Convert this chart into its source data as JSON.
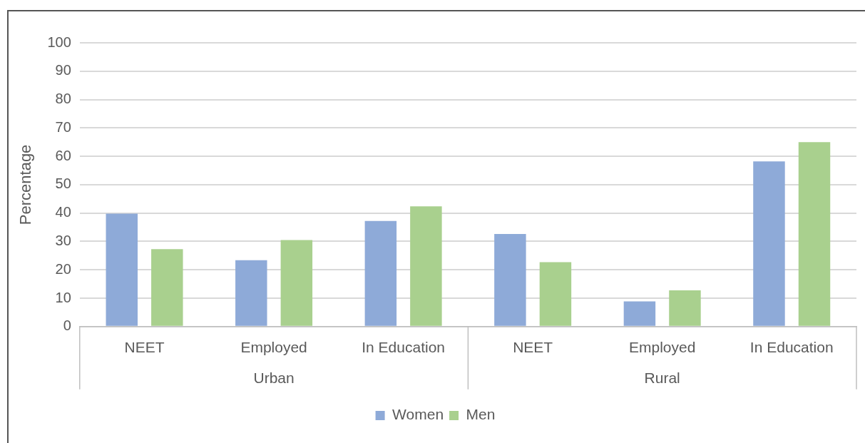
{
  "chart_data": {
    "type": "bar",
    "ylabel": "Percentage",
    "categories": [
      "NEET",
      "Employed",
      "In Education",
      "NEET",
      "Employed",
      "In Education"
    ],
    "annotations": [
      "Urban",
      "Rural"
    ],
    "series": [
      {
        "name": "Women",
        "color": "#8eaad8",
        "values": [
          39.8,
          23.4,
          37.2,
          32.6,
          8.9,
          58.2
        ]
      },
      {
        "name": "Men",
        "color": "#a9d08e",
        "values": [
          27.3,
          30.5,
          42.4,
          22.7,
          12.8,
          65
        ]
      }
    ],
    "ylim": [
      0,
      100
    ],
    "yticks": [
      0,
      10,
      20,
      30,
      40,
      50,
      60,
      70,
      80,
      90,
      100
    ],
    "grid": "y",
    "legend": "bottom"
  }
}
